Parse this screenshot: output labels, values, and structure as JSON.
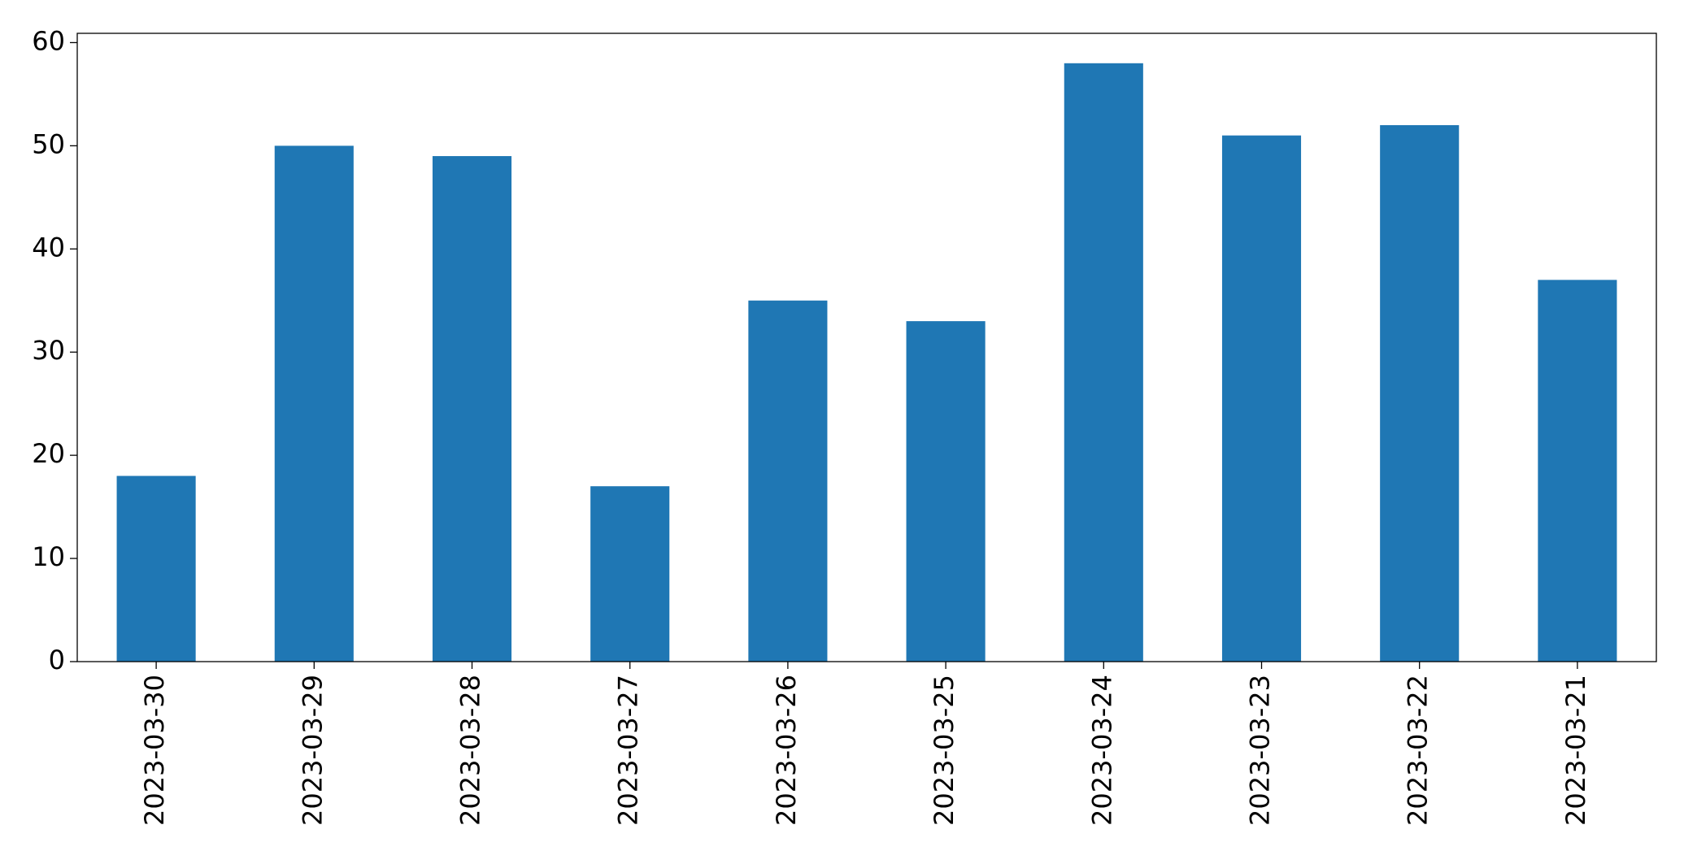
{
  "chart_data": {
    "type": "bar",
    "categories": [
      "2023-03-30",
      "2023-03-29",
      "2023-03-28",
      "2023-03-27",
      "2023-03-26",
      "2023-03-25",
      "2023-03-24",
      "2023-03-23",
      "2023-03-22",
      "2023-03-21"
    ],
    "values": [
      18,
      50,
      49,
      17,
      35,
      33,
      58,
      51,
      52,
      37
    ],
    "color": "#1f77b4",
    "ylim": [
      0,
      60.9
    ],
    "yticks": [
      0,
      10,
      20,
      30,
      40,
      50,
      60
    ],
    "grid": false
  }
}
